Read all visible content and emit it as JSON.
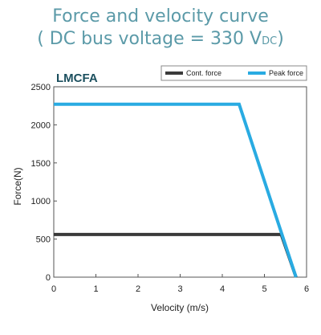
{
  "header": {
    "title_line1": "Force and velocity curve",
    "title_line2_prefix": "( DC bus voltage = 330 V",
    "title_line2_sub": "DC",
    "title_line2_suffix": ")"
  },
  "chart_data": {
    "type": "line",
    "title": "LMCFA",
    "xlabel": "Velocity (m/s)",
    "ylabel": "Force(N)",
    "xlim": [
      0,
      6
    ],
    "ylim": [
      0,
      2500
    ],
    "xticks": [
      0,
      1,
      2,
      3,
      4,
      5,
      6
    ],
    "yticks": [
      0,
      500,
      1000,
      1500,
      2000,
      2500
    ],
    "grid": false,
    "legend_position": "top-right",
    "series": [
      {
        "name": "Cont. force",
        "color": "#3a3a3a",
        "x": [
          0,
          5.4,
          5.75
        ],
        "y": [
          560,
          560,
          0
        ]
      },
      {
        "name": "Peak force",
        "color": "#29abe2",
        "x": [
          0,
          4.4,
          5.75
        ],
        "y": [
          2270,
          2270,
          0
        ]
      }
    ]
  }
}
